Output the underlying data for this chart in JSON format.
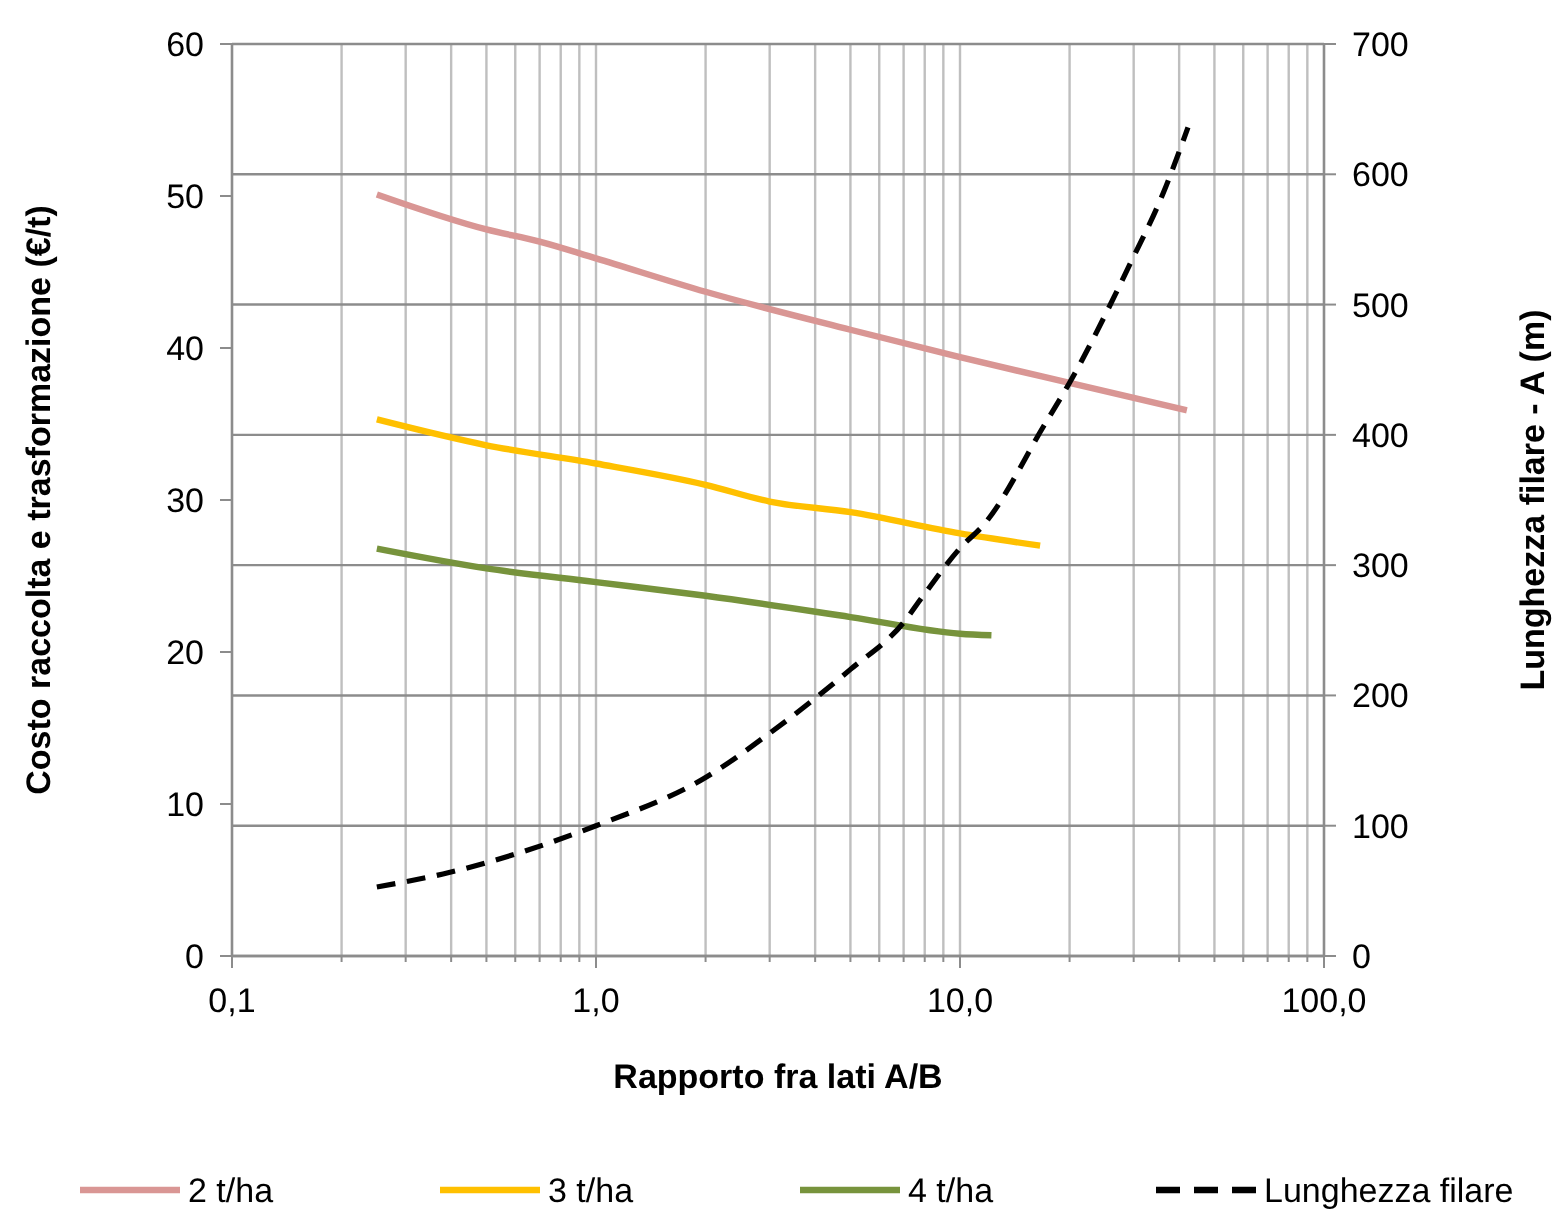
{
  "chart_data": {
    "type": "line",
    "xlabel": "Rapporto fra lati A/B",
    "ylabel": "Costo raccolta e trasformazione (€/t)",
    "y2label": "Lunghezza filare - A  (m)",
    "log": "x",
    "grid": true,
    "legend": "bottom",
    "marker": "none",
    "xlim": [
      0.1,
      100
    ],
    "xticks": [
      {
        "value": 0.1,
        "label": "0,1"
      },
      {
        "value": 0.2,
        "label": null
      },
      {
        "value": 0.3,
        "label": null
      },
      {
        "value": 0.4,
        "label": null
      },
      {
        "value": 0.5,
        "label": null
      },
      {
        "value": 0.6,
        "label": null
      },
      {
        "value": 0.7,
        "label": null
      },
      {
        "value": 0.8,
        "label": null
      },
      {
        "value": 0.9,
        "label": null
      },
      {
        "value": 1,
        "label": "1,0"
      },
      {
        "value": 2,
        "label": null
      },
      {
        "value": 3,
        "label": null
      },
      {
        "value": 4,
        "label": null
      },
      {
        "value": 5,
        "label": null
      },
      {
        "value": 6,
        "label": null
      },
      {
        "value": 7,
        "label": null
      },
      {
        "value": 8,
        "label": null
      },
      {
        "value": 9,
        "label": null
      },
      {
        "value": 10,
        "label": "10,0"
      },
      {
        "value": 20,
        "label": null
      },
      {
        "value": 30,
        "label": null
      },
      {
        "value": 40,
        "label": null
      },
      {
        "value": 50,
        "label": null
      },
      {
        "value": 60,
        "label": null
      },
      {
        "value": 70,
        "label": null
      },
      {
        "value": 80,
        "label": null
      },
      {
        "value": 90,
        "label": null
      },
      {
        "value": 100,
        "label": "100,0"
      }
    ],
    "ylim": [
      0,
      60
    ],
    "yticks": [
      0,
      10,
      20,
      30,
      40,
      50,
      60
    ],
    "y2lim": [
      0,
      700
    ],
    "y2ticks": [
      0,
      100,
      200,
      300,
      400,
      500,
      600,
      700
    ],
    "series": [
      {
        "name": "2 t/ha",
        "color": "#d99694",
        "line_style": "solid",
        "x": [
          0.25,
          0.5,
          0.7,
          1,
          2,
          5,
          10,
          20,
          42
        ],
        "values": [
          50.1,
          47.8,
          47.0,
          45.9,
          43.7,
          41.2,
          39.4,
          37.7,
          35.9
        ]
      },
      {
        "name": "3 t/ha",
        "color": "#ffc000",
        "line_style": "solid",
        "x": [
          0.25,
          0.5,
          1,
          2,
          3,
          5,
          10,
          16.6
        ],
        "values": [
          35.3,
          33.6,
          32.4,
          31.0,
          29.9,
          29.2,
          27.8,
          27.0
        ]
      },
      {
        "name": "4 t/ha",
        "color": "#77933c",
        "line_style": "solid",
        "x": [
          0.25,
          0.5,
          1,
          2,
          5,
          10,
          12.2
        ],
        "values": [
          26.8,
          25.5,
          24.6,
          23.7,
          22.3,
          21.2,
          21.1
        ]
      },
      {
        "name": "Lunghezza filare",
        "color": "#000000",
        "line_style": "dashed",
        "axis": "y2",
        "x": [
          0.25,
          0.38,
          1,
          2,
          3,
          5,
          7,
          7.9,
          10,
          11.7,
          17,
          20,
          29.3,
          36.1,
          42.3
        ],
        "values": [
          53,
          63,
          100,
          137,
          171,
          220,
          256,
          276,
          313,
          332,
          407,
          440,
          531,
          585,
          636
        ]
      }
    ]
  }
}
